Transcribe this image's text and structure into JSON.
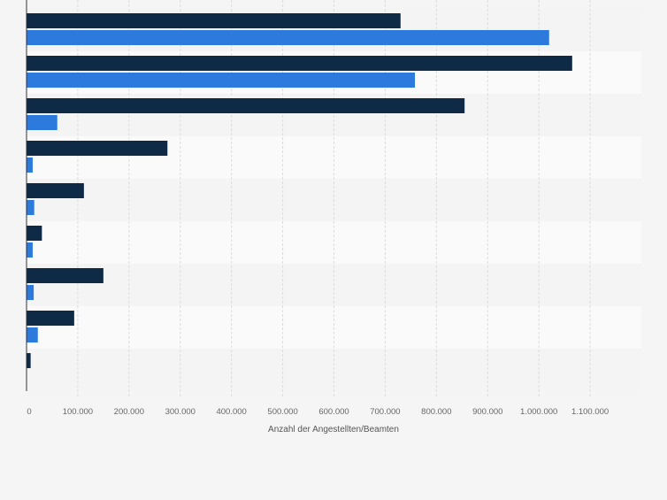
{
  "chart_data": {
    "type": "bar",
    "orientation": "horizontal",
    "xlabel": "Anzahl der Angestellten/Beamten",
    "ylabel": "",
    "xlim": [
      0,
      1200000
    ],
    "xticks": [
      0,
      100000,
      200000,
      300000,
      400000,
      500000,
      600000,
      700000,
      800000,
      900000,
      1000000,
      1100000
    ],
    "xtick_labels": [
      "0",
      "100.000",
      "200.000",
      "300.000",
      "400.000",
      "500.000",
      "600.000",
      "700.000",
      "800.000",
      "900.000",
      "1.000.000",
      "1.100.000"
    ],
    "grid": true,
    "legend": "none",
    "categories": [
      "",
      "",
      "",
      "",
      "",
      "",
      "",
      "",
      ""
    ],
    "series": [
      {
        "color": "#0f2a47",
        "values": [
          730000,
          1065000,
          855000,
          275000,
          112000,
          30000,
          150000,
          93000,
          8000
        ]
      },
      {
        "color": "#2c7bdc",
        "values": [
          1020000,
          758000,
          60000,
          12000,
          15000,
          12000,
          14000,
          22000,
          null
        ]
      }
    ],
    "colors": {
      "background": "#f5f5f5",
      "band_light": "#fafafa",
      "band_dark": "#f4f4f4",
      "grid": "#dcdcdc",
      "tick_text": "#666666"
    }
  }
}
